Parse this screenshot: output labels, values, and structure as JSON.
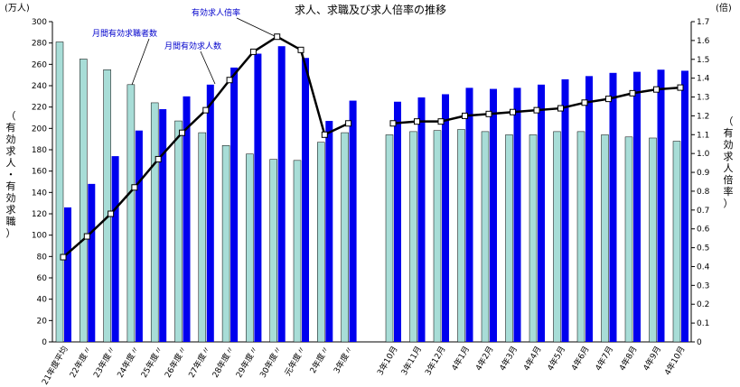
{
  "chart_data": {
    "type": "bar",
    "title": "求人、求職及び求人倍率の推移",
    "left_unit": "(万人)",
    "right_unit": "(倍)",
    "left_axis_label": "（有効求人・有効求職）",
    "right_axis_label": "（有効求人倍率）",
    "left_ylim": [
      0,
      300
    ],
    "left_ticks": [
      0,
      20,
      40,
      60,
      80,
      100,
      120,
      140,
      160,
      180,
      200,
      220,
      240,
      260,
      280,
      300
    ],
    "right_ylim": [
      0,
      1.7
    ],
    "right_ticks": [
      "0",
      "0.1",
      "0.2",
      "0.3",
      "0.4",
      "0.5",
      "0.6",
      "0.7",
      "0.8",
      "0.9",
      "1.0",
      "1.1",
      "1.2",
      "1.3",
      "1.4",
      "1.5",
      "1.6",
      "1.7"
    ],
    "categories": [
      "21年度平均",
      "22年度〃",
      "23年度〃",
      "24年度〃",
      "25年度〃",
      "26年度〃",
      "27年度〃",
      "28年度〃",
      "29年度〃",
      "30年度〃",
      "元年度〃",
      "2年度〃",
      "3年度〃",
      "3年10月",
      "3年11月",
      "3年12月",
      "4年1月",
      "4年2月",
      "4年3月",
      "4年4月",
      "4年5月",
      "4年6月",
      "4年7月",
      "4年8月",
      "4年9月",
      "4年10月"
    ],
    "series": [
      {
        "name": "月間有効求職者数",
        "color": "#a8ddd7",
        "axis": "left",
        "values": [
          281,
          265,
          255,
          241,
          224,
          207,
          196,
          184,
          176,
          171,
          170,
          187,
          196,
          194,
          197,
          198,
          199,
          197,
          194,
          194,
          197,
          197,
          194,
          192,
          191,
          188
        ]
      },
      {
        "name": "月間有効求人数",
        "color": "#0000ee",
        "axis": "left",
        "values": [
          126,
          148,
          174,
          198,
          218,
          230,
          241,
          257,
          270,
          277,
          266,
          207,
          226,
          225,
          229,
          232,
          238,
          237,
          238,
          241,
          246,
          249,
          252,
          253,
          255,
          254
        ]
      },
      {
        "name": "有効求人倍率",
        "color": "#000000",
        "axis": "right",
        "type": "line",
        "values": [
          0.45,
          0.56,
          0.68,
          0.82,
          0.97,
          1.11,
          1.23,
          1.39,
          1.54,
          1.62,
          1.55,
          1.1,
          1.16,
          1.16,
          1.17,
          1.17,
          1.2,
          1.21,
          1.22,
          1.23,
          1.24,
          1.27,
          1.29,
          1.32,
          1.34,
          1.35
        ]
      }
    ],
    "legend": "annotations-with-leader-lines",
    "grid": false
  }
}
